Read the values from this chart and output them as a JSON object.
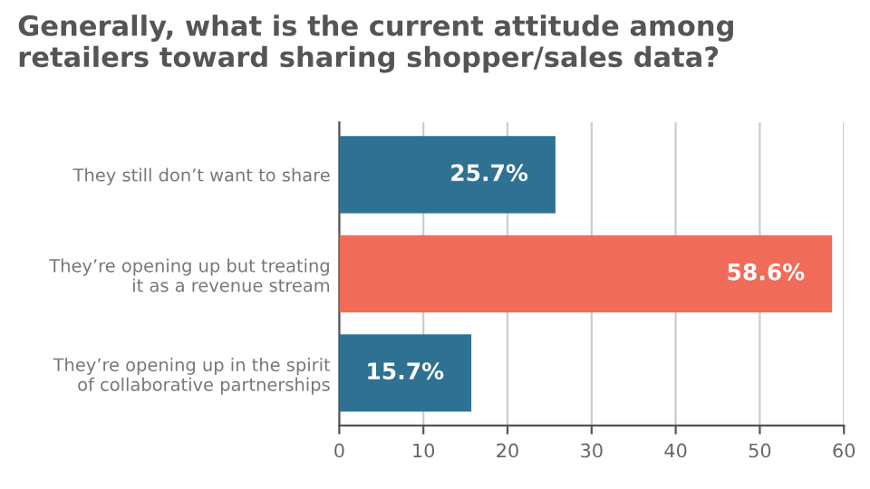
{
  "chart_data": {
    "type": "bar",
    "orientation": "horizontal",
    "title": "Generally, what is the current attitude among\nretailers toward sharing shopper/sales data?",
    "categories": [
      "They still don’t want to share",
      "They’re opening up but treating\nit as a revenue stream",
      "They’re opening up in the spirit\nof collaborative partnerships"
    ],
    "values": [
      25.7,
      58.6,
      15.7
    ],
    "colors": [
      "#2e7192",
      "#f06b58",
      "#2e7192"
    ],
    "value_labels": [
      "25.7%",
      "58.6%",
      "15.7%"
    ],
    "xlim": [
      0,
      60
    ],
    "xticks": [
      0,
      10,
      20,
      30,
      40,
      50,
      60
    ],
    "grid": "x"
  }
}
